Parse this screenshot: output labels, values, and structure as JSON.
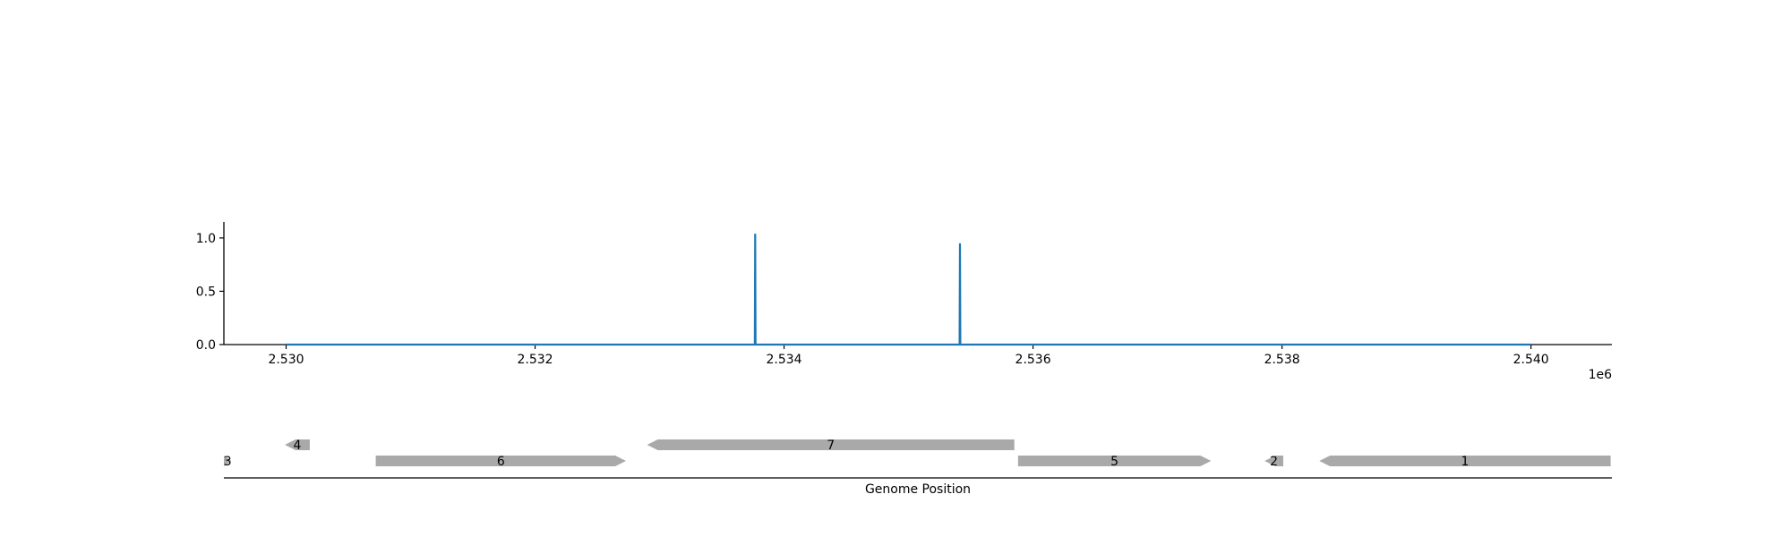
{
  "chart_data": [
    {
      "type": "line",
      "title": "",
      "xlabel": "",
      "ylabel": "",
      "xlim": [
        2529500,
        2540650
      ],
      "ylim": [
        0,
        1.15
      ],
      "x_ticks": [
        2530000,
        2532000,
        2534000,
        2536000,
        2538000,
        2540000
      ],
      "x_tick_labels": [
        "2.530",
        "2.532",
        "2.534",
        "2.536",
        "2.538",
        "2.540"
      ],
      "x_offset_label": "1e6",
      "y_ticks": [
        0,
        0.5,
        1
      ],
      "y_tick_labels": [
        "0.0",
        "0.5",
        "1.0"
      ],
      "grid": false,
      "legend": "none",
      "line_color": "#1f77b4",
      "x": [
        2530000,
        2533765,
        2533768,
        2533771,
        2535410,
        2535413,
        2535416,
        2540000
      ],
      "y": [
        0,
        0,
        1.04,
        0,
        0,
        0.95,
        0,
        0
      ]
    },
    {
      "type": "gene_map",
      "xlabel": "Genome Position",
      "xlim": [
        2529500,
        2540650
      ],
      "feature_color": "#a9a9a9",
      "features": [
        {
          "label": "3",
          "start": 2529380,
          "end": 2529560,
          "strand": 1,
          "row": 0
        },
        {
          "label": "4",
          "start": 2529990,
          "end": 2530190,
          "strand": -1,
          "row": 1
        },
        {
          "label": "6",
          "start": 2530720,
          "end": 2532730,
          "strand": 1,
          "row": 0
        },
        {
          "label": "7",
          "start": 2532900,
          "end": 2535850,
          "strand": -1,
          "row": 1
        },
        {
          "label": "5",
          "start": 2535880,
          "end": 2537430,
          "strand": 1,
          "row": 0
        },
        {
          "label": "2",
          "start": 2537860,
          "end": 2538010,
          "strand": -1,
          "row": 0
        },
        {
          "label": "1",
          "start": 2538300,
          "end": 2540640,
          "strand": -1,
          "row": 0
        }
      ]
    }
  ]
}
